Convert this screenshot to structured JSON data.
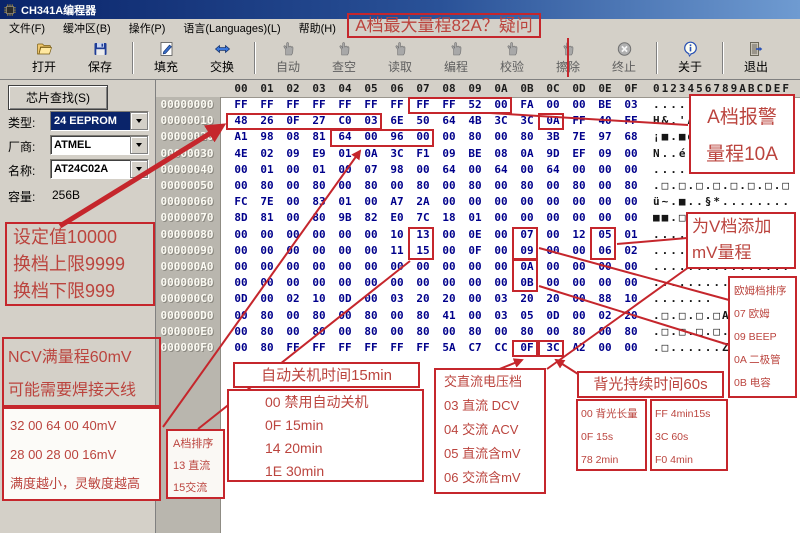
{
  "window": {
    "title": "CH341A编程器"
  },
  "menu": {
    "items": [
      "文件(F)",
      "缓冲区(B)",
      "操作(P)",
      "语言(Languages)(L)",
      "帮助(H)"
    ]
  },
  "toolbar": {
    "buttons": [
      {
        "label": "打开",
        "icon": "open-folder-icon",
        "enabled": true
      },
      {
        "label": "保存",
        "icon": "save-icon",
        "enabled": true
      },
      {
        "label": "填充",
        "icon": "fill-icon",
        "enabled": true
      },
      {
        "label": "交换",
        "icon": "swap-icon",
        "enabled": true
      },
      {
        "label": "自动",
        "icon": "auto-icon",
        "enabled": false
      },
      {
        "label": "查空",
        "icon": "blank-check-icon",
        "enabled": false
      },
      {
        "label": "读取",
        "icon": "read-icon",
        "enabled": false
      },
      {
        "label": "编程",
        "icon": "program-icon",
        "enabled": false
      },
      {
        "label": "校验",
        "icon": "verify-icon",
        "enabled": false
      },
      {
        "label": "擦除",
        "icon": "erase-icon",
        "enabled": false
      },
      {
        "label": "终止",
        "icon": "stop-icon",
        "enabled": false
      },
      {
        "label": "关于",
        "icon": "about-icon",
        "enabled": true
      },
      {
        "label": "退出",
        "icon": "exit-icon",
        "enabled": true
      }
    ]
  },
  "chip_panel": {
    "search_button": "芯片查找(S)",
    "type_label": "类型:",
    "type_value": "24 EEPROM",
    "vendor_label": "厂商:",
    "vendor_value": "ATMEL",
    "name_label": "名称:",
    "name_value": "AT24C02A",
    "capacity_label": "容量:",
    "capacity_value": "256B"
  },
  "hex": {
    "col_headers": [
      "00",
      "01",
      "02",
      "03",
      "04",
      "05",
      "06",
      "07",
      "08",
      "09",
      "0A",
      "0B",
      "0C",
      "0D",
      "0E",
      "0F"
    ],
    "ascii_header": "0123456789ABCDEF",
    "rows": [
      {
        "addr": "00000000",
        "bytes": [
          "FF",
          "FF",
          "FF",
          "FF",
          "FF",
          "FF",
          "FF",
          "FF",
          "FF",
          "52",
          "00",
          "FA",
          "00",
          "00",
          "BE",
          "03"
        ],
        "ascii": ".........R.ú..¾."
      },
      {
        "addr": "00000010",
        "bytes": [
          "48",
          "26",
          "0F",
          "27",
          "C0",
          "03",
          "6E",
          "50",
          "64",
          "4B",
          "3C",
          "3C",
          "0A",
          "FF",
          "40",
          "FF"
        ],
        "ascii": "H&.'Å.nPdK<<..@."
      },
      {
        "addr": "00000020",
        "bytes": [
          "A1",
          "98",
          "08",
          "81",
          "64",
          "00",
          "96",
          "00",
          "00",
          "80",
          "00",
          "80",
          "3B",
          "7E",
          "97",
          "68"
        ],
        "ascii": "¡■.■d.■..□.□;~■h"
      },
      {
        "addr": "00000030",
        "bytes": [
          "4E",
          "02",
          "09",
          "E9",
          "01",
          "0A",
          "3C",
          "F1",
          "09",
          "BE",
          "08",
          "0A",
          "9D",
          "EF",
          "09",
          "00"
        ],
        "ascii": "N..é..<ñ.¾..■ï.."
      },
      {
        "addr": "00000040",
        "bytes": [
          "00",
          "01",
          "00",
          "01",
          "00",
          "07",
          "98",
          "00",
          "64",
          "00",
          "64",
          "00",
          "64",
          "00",
          "00",
          "00"
        ],
        "ascii": "......■.d.d.d..."
      },
      {
        "addr": "00000050",
        "bytes": [
          "00",
          "80",
          "00",
          "80",
          "00",
          "80",
          "00",
          "80",
          "00",
          "80",
          "00",
          "80",
          "00",
          "80",
          "00",
          "80"
        ],
        "ascii": ".□.□.□.□.□.□.□.□"
      },
      {
        "addr": "00000060",
        "bytes": [
          "FC",
          "7E",
          "00",
          "83",
          "01",
          "00",
          "A7",
          "2A",
          "00",
          "00",
          "00",
          "00",
          "00",
          "00",
          "00",
          "00"
        ],
        "ascii": "ü~.■..§*........"
      },
      {
        "addr": "00000070",
        "bytes": [
          "8D",
          "81",
          "00",
          "80",
          "9B",
          "82",
          "E0",
          "7C",
          "18",
          "01",
          "00",
          "00",
          "00",
          "00",
          "00",
          "00"
        ],
        "ascii": "■■.□■■à|........"
      },
      {
        "addr": "00000080",
        "bytes": [
          "00",
          "00",
          "00",
          "00",
          "00",
          "00",
          "10",
          "13",
          "00",
          "0E",
          "00",
          "07",
          "00",
          "12",
          "05",
          "01"
        ],
        "ascii": "................"
      },
      {
        "addr": "00000090",
        "bytes": [
          "00",
          "00",
          "00",
          "00",
          "00",
          "00",
          "11",
          "15",
          "00",
          "0F",
          "00",
          "09",
          "00",
          "00",
          "06",
          "02"
        ],
        "ascii": "................"
      },
      {
        "addr": "000000A0",
        "bytes": [
          "00",
          "00",
          "00",
          "00",
          "00",
          "00",
          "00",
          "00",
          "00",
          "00",
          "00",
          "0A",
          "00",
          "00",
          "00",
          "00"
        ],
        "ascii": "................"
      },
      {
        "addr": "000000B0",
        "bytes": [
          "00",
          "00",
          "00",
          "00",
          "00",
          "00",
          "00",
          "00",
          "00",
          "00",
          "00",
          "0B",
          "00",
          "00",
          "00",
          "00"
        ],
        "ascii": "................"
      },
      {
        "addr": "000000C0",
        "bytes": [
          "0D",
          "00",
          "02",
          "10",
          "0D",
          "00",
          "03",
          "20",
          "20",
          "00",
          "03",
          "20",
          "20",
          "00",
          "88",
          "10"
        ],
        "ascii": ".......  ..  .■."
      },
      {
        "addr": "000000D0",
        "bytes": [
          "00",
          "80",
          "00",
          "80",
          "00",
          "80",
          "00",
          "80",
          "41",
          "00",
          "03",
          "05",
          "0D",
          "00",
          "02",
          "20"
        ],
        "ascii": ".□.□.□.□A...... "
      },
      {
        "addr": "000000E0",
        "bytes": [
          "00",
          "80",
          "00",
          "80",
          "00",
          "80",
          "00",
          "80",
          "00",
          "80",
          "00",
          "80",
          "00",
          "80",
          "00",
          "80"
        ],
        "ascii": ".□.□.□.□.□.□.□.□"
      },
      {
        "addr": "000000F0",
        "bytes": [
          "00",
          "80",
          "FF",
          "FF",
          "FF",
          "FF",
          "FF",
          "FF",
          "5A",
          "C7",
          "CC",
          "0F",
          "3C",
          "A2",
          "00",
          "00"
        ],
        "ascii": ".□......ZÇÌ.<¢.."
      }
    ],
    "highlights": [
      [
        0,
        0,
        7,
        10
      ],
      [
        1,
        1,
        0,
        5
      ],
      [
        1,
        1,
        12,
        12
      ],
      [
        2,
        2,
        4,
        7
      ],
      [
        8,
        9,
        7,
        7
      ],
      [
        8,
        9,
        11,
        11
      ],
      [
        8,
        9,
        14,
        14
      ],
      [
        10,
        11,
        11,
        11
      ],
      [
        15,
        15,
        11,
        11
      ],
      [
        15,
        15,
        12,
        12
      ]
    ]
  },
  "annotations": {
    "max_range": "A档最大量程82A？疑问",
    "a_alarm": [
      "A档报警",
      "量程10A"
    ],
    "setpoint": [
      "设定值10000",
      "换档上限9999",
      "换档下限999"
    ],
    "ncv": [
      "NCV满量程60mV",
      "可能需要焊接天线"
    ],
    "ncv_values": [
      "32 00 64 00 40mV",
      "28 00 28 00 16mV",
      "满度越小，灵敏度越高"
    ],
    "a_order": [
      "A档排序",
      "13 直流",
      "15交流"
    ],
    "auto_off_title": "自动关机时间15min",
    "auto_off_body": [
      "00 禁用自动关机",
      "0F 15min",
      "14 20min",
      "1E 30min"
    ],
    "acdc": [
      "交直流电压档",
      "03 直流 DCV",
      "04 交流 ACV",
      "05 直流含mV",
      "06 交流含mV"
    ],
    "backlight_title": "背光持续时间60s",
    "backlight_left": [
      "00 背光长量",
      "0F 15s",
      "78 2min"
    ],
    "backlight_right": [
      "FF 4min15s",
      "3C 60s",
      "F0 4min"
    ],
    "ohm_order": [
      "欧姆档排序",
      "07 欧姆",
      "09 BEEP",
      "0A 二极管",
      "0B 电容"
    ],
    "v_mv": [
      "为V档添加",
      "mV量程"
    ]
  },
  "colors": {
    "annotation_red": "#c5262c",
    "hex_byte_blue": "#00008b",
    "selection_blue": "#0a246a"
  }
}
